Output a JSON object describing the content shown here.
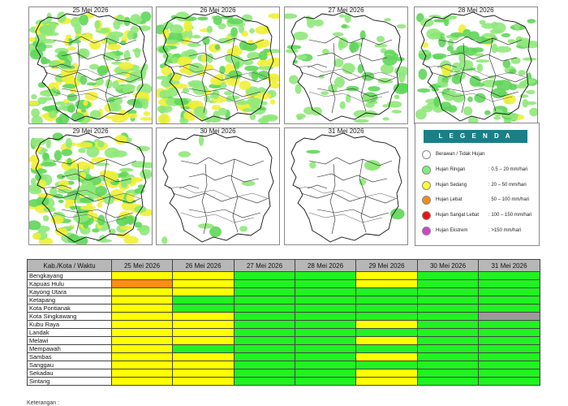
{
  "maps": [
    {
      "date": "25 Mei 2026",
      "rain": "heavy"
    },
    {
      "date": "26 Mei 2026",
      "rain": "heavy"
    },
    {
      "date": "27 Mei 2026",
      "rain": "light"
    },
    {
      "date": "28 Mei 2026",
      "rain": "medium"
    },
    {
      "date": "29 Mei 2026",
      "rain": "heavy"
    },
    {
      "date": "30 Mei 2026",
      "rain": "sparse"
    },
    {
      "date": "31 Mei 2026",
      "rain": "sparse"
    }
  ],
  "legend": {
    "title": "L E G E N D A",
    "items": [
      {
        "label": "Berawan / Tidak Hujan",
        "range": "",
        "color": "#ffffff"
      },
      {
        "label": "Hujan Ringan",
        "range": ": 0.5 – 20 mm/hari",
        "color": "#7ff07f"
      },
      {
        "label": "Hujan Sedang",
        "range": ": 20 – 50 mm/hari",
        "color": "#ffff33"
      },
      {
        "label": "Hujan Lebat",
        "range": ": 50 – 100 mm/hari",
        "color": "#f08c1e"
      },
      {
        "label": "Hujan Sangat Lebat",
        "range": ": 100 – 150 mm/hari",
        "color": "#ee1111"
      },
      {
        "label": "Hujan Ekstrem",
        "range": ": >150 mm/hari",
        "color": "#cc44cc"
      }
    ]
  },
  "table": {
    "corner": "Kab./Kota / Waktu",
    "dates": [
      "25 Mei 2026",
      "26 Mei 2026",
      "27 Mei 2026",
      "28 Mei 2026",
      "29 Mei 2026",
      "30 Mei 2026",
      "31 Mei 2026"
    ],
    "rows": [
      {
        "name": "Bengkayang",
        "cells": [
          "y",
          "y",
          "g",
          "g",
          "y",
          "g",
          "g"
        ]
      },
      {
        "name": "Kapuas Hulu",
        "cells": [
          "o",
          "y",
          "g",
          "g",
          "y",
          "g",
          "g"
        ]
      },
      {
        "name": "Kayong Utara",
        "cells": [
          "y",
          "y",
          "g",
          "g",
          "g",
          "g",
          "g"
        ]
      },
      {
        "name": "Ketapang",
        "cells": [
          "y",
          "g",
          "g",
          "g",
          "g",
          "g",
          "g"
        ]
      },
      {
        "name": "Kota Pontianak",
        "cells": [
          "y",
          "g",
          "g",
          "g",
          "g",
          "g",
          "g"
        ]
      },
      {
        "name": "Kota Singkawang",
        "cells": [
          "y",
          "y",
          "g",
          "g",
          "g",
          "g",
          "gr"
        ]
      },
      {
        "name": "Kubu Raya",
        "cells": [
          "y",
          "y",
          "g",
          "g",
          "y",
          "g",
          "g"
        ]
      },
      {
        "name": "Landak",
        "cells": [
          "y",
          "y",
          "g",
          "g",
          "g",
          "g",
          "g"
        ]
      },
      {
        "name": "Melawi",
        "cells": [
          "y",
          "y",
          "g",
          "g",
          "y",
          "g",
          "g"
        ]
      },
      {
        "name": "Mempawah",
        "cells": [
          "y",
          "g",
          "g",
          "g",
          "g",
          "g",
          "g"
        ]
      },
      {
        "name": "Sambas",
        "cells": [
          "y",
          "y",
          "g",
          "g",
          "y",
          "g",
          "g"
        ]
      },
      {
        "name": "Sanggau",
        "cells": [
          "y",
          "y",
          "g",
          "g",
          "g",
          "g",
          "g"
        ]
      },
      {
        "name": "Sekadau",
        "cells": [
          "y",
          "y",
          "g",
          "g",
          "y",
          "g",
          "g"
        ]
      },
      {
        "name": "Sintang",
        "cells": [
          "y",
          "y",
          "g",
          "g",
          "y",
          "g",
          "g"
        ]
      }
    ]
  },
  "footnote": "Keterangan :"
}
